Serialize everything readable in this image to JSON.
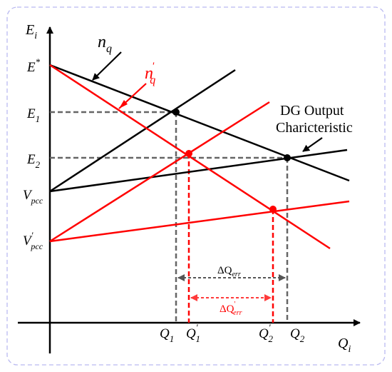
{
  "labels": {
    "y_axis": "E",
    "y_axis_sub": "i",
    "x_axis": "Q",
    "x_axis_sub": "i",
    "n": "n",
    "n_sub": "q",
    "n2": "n",
    "n2_sup": "'",
    "n2_sub": "q",
    "e_star": "E",
    "e_star_sup": "*",
    "e1": "E",
    "e1_sub": "1",
    "e2": "E",
    "e2_sub": "2",
    "v": "V",
    "v_sub": "pcc",
    "v2": "V",
    "v2_sup": "'",
    "v2_sub": "pcc",
    "q1": "Q",
    "q1_sub": "1",
    "q1p": "Q",
    "q1p_sup": "'",
    "q1p_sub": "1",
    "q2p": "Q",
    "q2p_sup": "'",
    "q2p_sub": "2",
    "q2": "Q",
    "q2_sub": "2",
    "dg_line1": "DG Output",
    "dg_line2": "Charicteristic",
    "dq": "ΔQ",
    "dq_sub": "err",
    "dq2": "ΔQ",
    "dq2_sup": "'",
    "dq2_sub": "err"
  },
  "colors": {
    "black": "#000000",
    "red": "#ff0000",
    "dash_gray": "#666666",
    "border": "#b9b9f0"
  }
}
